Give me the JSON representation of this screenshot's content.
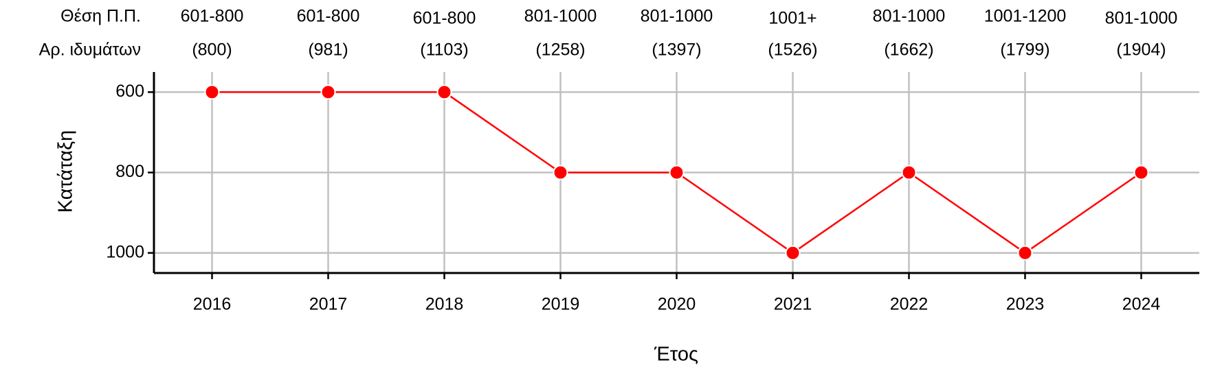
{
  "chart_data": {
    "type": "line",
    "x_label": "Έτος",
    "y_label": "Κατάταξη",
    "categories": [
      "2016",
      "2017",
      "2018",
      "2019",
      "2020",
      "2021",
      "2022",
      "2023",
      "2024"
    ],
    "series": [
      {
        "color": "#ff0000",
        "values": [
          600,
          600,
          600,
          800,
          800,
          1000,
          800,
          1000,
          800
        ]
      }
    ],
    "ylim": [
      550,
      1050
    ],
    "y_inverted": true,
    "yticks": [
      600,
      800,
      1000
    ],
    "grid": true,
    "annotation_rows": [
      {
        "label": "Θέση Π.Π.",
        "texts": [
          "601-800",
          "601-800",
          "601-800",
          "801-1000",
          "801-1000",
          "1001+",
          "801-1000",
          "1001-1200",
          "801-1000"
        ]
      },
      {
        "label": "Αρ. ιδυμάτων",
        "texts": [
          "(800)",
          "(981)",
          "(1103)",
          "(1258)",
          "(1397)",
          "(1526)",
          "(1662)",
          "(1799)",
          "(1904)"
        ]
      }
    ]
  }
}
